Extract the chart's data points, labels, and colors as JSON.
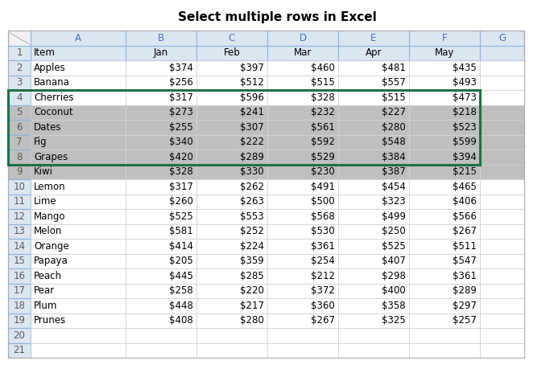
{
  "title": "Select multiple rows in Excel",
  "col_headers": [
    "",
    "A",
    "B",
    "C",
    "D",
    "E",
    "F",
    "G"
  ],
  "row_numbers": [
    "1",
    "2",
    "3",
    "4",
    "5",
    "6",
    "7",
    "8",
    "9",
    "10",
    "11",
    "12",
    "13",
    "14",
    "15",
    "16",
    "17",
    "18",
    "19",
    "20",
    "21"
  ],
  "data_headers": [
    "Item",
    "Jan",
    "Feb",
    "Mar",
    "Apr",
    "May",
    ""
  ],
  "data": [
    [
      "Apples",
      "$374",
      "$397",
      "$460",
      "$481",
      "$435",
      ""
    ],
    [
      "Banana",
      "$256",
      "$512",
      "$515",
      "$557",
      "$493",
      ""
    ],
    [
      "Cherries",
      "$317",
      "$596",
      "$328",
      "$515",
      "$473",
      ""
    ],
    [
      "Coconut",
      "$273",
      "$241",
      "$232",
      "$227",
      "$218",
      ""
    ],
    [
      "Dates",
      "$255",
      "$307",
      "$561",
      "$280",
      "$523",
      ""
    ],
    [
      "Fig",
      "$340",
      "$222",
      "$592",
      "$548",
      "$599",
      ""
    ],
    [
      "Grapes",
      "$420",
      "$289",
      "$529",
      "$384",
      "$394",
      ""
    ],
    [
      "Kiwi",
      "$328",
      "$330",
      "$230",
      "$387",
      "$215",
      ""
    ],
    [
      "Lemon",
      "$317",
      "$262",
      "$491",
      "$454",
      "$465",
      ""
    ],
    [
      "Lime",
      "$260",
      "$263",
      "$500",
      "$323",
      "$406",
      ""
    ],
    [
      "Mango",
      "$525",
      "$553",
      "$568",
      "$499",
      "$566",
      ""
    ],
    [
      "Melon",
      "$581",
      "$252",
      "$530",
      "$250",
      "$267",
      ""
    ],
    [
      "Orange",
      "$414",
      "$224",
      "$361",
      "$525",
      "$511",
      ""
    ],
    [
      "Papaya",
      "$205",
      "$359",
      "$254",
      "$407",
      "$547",
      ""
    ],
    [
      "Peach",
      "$445",
      "$285",
      "$212",
      "$298",
      "$361",
      ""
    ],
    [
      "Pear",
      "$258",
      "$220",
      "$372",
      "$400",
      "$289",
      ""
    ],
    [
      "Plum",
      "$448",
      "$217",
      "$360",
      "$358",
      "$297",
      ""
    ],
    [
      "Prunes",
      "$408",
      "$280",
      "$267",
      "$325",
      "$257",
      ""
    ]
  ],
  "highlighted_data_rows": [
    3,
    4,
    5,
    6,
    7
  ],
  "col_header_bg": "#dce6f1",
  "col_header_text": "#4472c4",
  "col_header_border": "#8db4e2",
  "row_header_bg": "#dce6f1",
  "row_header_text": "#595959",
  "header_row_bg": "#dce6f1",
  "highlight_bg": "#bfbfbf",
  "highlight_row_header_bg": "#bfbfbf",
  "normal_bg": "#ffffff",
  "grid_color": "#d4d4d4",
  "outer_border_color": "#aeaaae",
  "selection_border_color": "#1f7145",
  "title_fontsize": 11,
  "cell_fontsize": 8.5,
  "col_header_fontsize": 8.5,
  "row_header_fontsize": 8.5
}
